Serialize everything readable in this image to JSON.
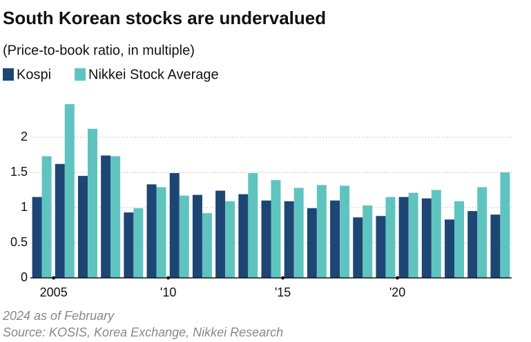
{
  "chart_data": {
    "type": "bar",
    "title": "South Korean stocks are undervalued",
    "subtitle": "(Price-to-book ratio, in multiple)",
    "notes": [
      "2024 as of February",
      "Source: KOSIS, Korea Exchange, Nikkei Research"
    ],
    "categories": [
      null,
      "2005",
      null,
      null,
      null,
      null,
      "'10",
      null,
      null,
      null,
      null,
      "'15",
      null,
      null,
      null,
      null,
      "'20",
      null,
      null,
      null,
      null
    ],
    "series": [
      {
        "name": "Kospi",
        "color": "#1d4675",
        "values": [
          1.15,
          1.62,
          1.45,
          1.74,
          0.93,
          1.33,
          1.49,
          1.18,
          1.24,
          1.19,
          1.1,
          1.09,
          0.99,
          1.1,
          0.86,
          0.88,
          1.15,
          1.13,
          0.83,
          0.95,
          0.9
        ]
      },
      {
        "name": "Nikkei Stock Average",
        "color": "#5fc4c0",
        "values": [
          1.73,
          2.47,
          2.12,
          1.73,
          0.99,
          1.29,
          1.17,
          0.92,
          1.09,
          1.49,
          1.39,
          1.28,
          1.32,
          1.31,
          1.03,
          1.15,
          1.21,
          1.25,
          1.09,
          1.29,
          1.5
        ]
      }
    ],
    "ylim": [
      0,
      2.5
    ],
    "yticks": [
      0,
      0.5,
      1,
      1.5,
      2
    ],
    "grid": true
  }
}
